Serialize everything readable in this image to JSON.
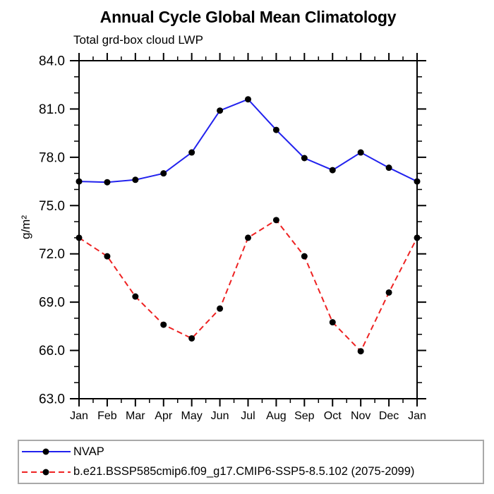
{
  "chart_data": {
    "type": "line",
    "title": "Annual Cycle Global Mean Climatology",
    "subtitle": "Total grd-box cloud LWP",
    "ylabel": "g/m²",
    "xlabel": "",
    "categories": [
      "Jan",
      "Feb",
      "Mar",
      "Apr",
      "May",
      "Jun",
      "Jul",
      "Aug",
      "Sep",
      "Oct",
      "Nov",
      "Dec",
      "Jan"
    ],
    "ylim": [
      63.0,
      84.0
    ],
    "ytick_major": [
      63,
      66,
      69,
      72,
      75,
      78,
      81,
      84
    ],
    "ytick_labels": [
      "63.0",
      "66.0",
      "69.0",
      "72.0",
      "75.0",
      "78.0",
      "81.0",
      "84.0"
    ],
    "ytick_minor_step": 1,
    "grid": false,
    "legend_position": "bottom",
    "marker": "filled-circle-icon",
    "axis_color": "#000000",
    "series": [
      {
        "name": "NVAP",
        "color": "#2222ee",
        "style": "solid",
        "marker_color": "#000000",
        "values": [
          76.5,
          76.45,
          76.6,
          77.0,
          78.3,
          80.9,
          81.6,
          79.7,
          77.95,
          77.2,
          78.3,
          77.35,
          76.5
        ]
      },
      {
        "name": "b.e21.BSSP585cmip6.f09_g17.CMIP6-SSP5-8.5.102 (2075-2099)",
        "color": "#ee2222",
        "style": "dashed",
        "marker_color": "#000000",
        "values": [
          73.0,
          71.85,
          69.35,
          67.6,
          66.75,
          68.6,
          73.0,
          74.1,
          71.85,
          67.75,
          65.95,
          69.6,
          73.0
        ]
      }
    ]
  }
}
